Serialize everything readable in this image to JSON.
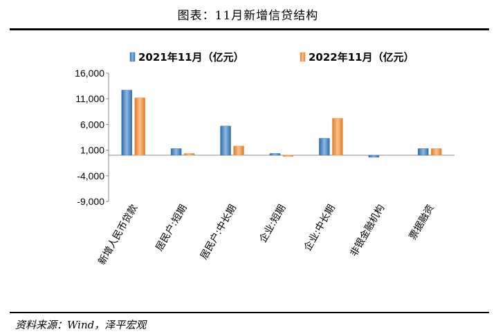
{
  "header": {
    "title": "图表：11月新增信贷结构"
  },
  "footer": {
    "source": "资料来源：Wind，泽平宏观"
  },
  "chart_data": {
    "type": "bar",
    "categories": [
      "新增人民币贷款",
      "居民户:短期",
      "居民户:中长期",
      "企业:短期",
      "企业:中长期",
      "非银金融机构",
      "票据融资"
    ],
    "series": [
      {
        "name": "2021年11月（亿元）",
        "values": [
          12700,
          1300,
          5700,
          350,
          3300,
          -400,
          1300
        ]
      },
      {
        "name": "2022年11月（亿元）",
        "values": [
          11200,
          350,
          1800,
          -250,
          7200,
          0,
          1300
        ]
      }
    ],
    "yticks": [
      "16,000",
      "11,000",
      "6,000",
      "1,000",
      "-4,000",
      "-9,000"
    ],
    "ylim": [
      -9000,
      16000
    ],
    "legend": "top",
    "colors": {
      "s1": "#3F7DBF",
      "s2": "#F39A4E"
    }
  }
}
